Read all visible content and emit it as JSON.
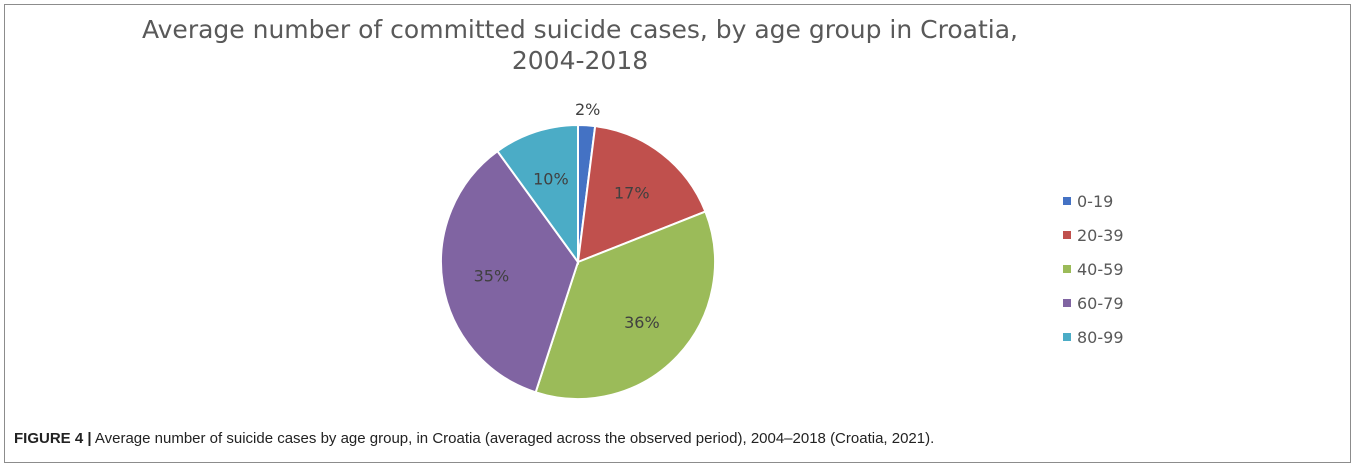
{
  "chart_data": {
    "type": "pie",
    "title_lines": [
      "Average number of committed suicide cases, by age group in Croatia,",
      "2004-2018"
    ],
    "categories": [
      "0-19",
      "20-39",
      "40-59",
      "60-79",
      "80-99"
    ],
    "values": [
      2,
      17,
      36,
      35,
      10
    ],
    "labels": [
      "2%",
      "17%",
      "36%",
      "35%",
      "10%"
    ],
    "colors": [
      "#4472c4",
      "#c0504d",
      "#9bbb59",
      "#8064a2",
      "#4bacc6"
    ],
    "legend_position": "right"
  },
  "caption": {
    "label": "FIGURE 4 |",
    "text": " Average number of suicide cases by age group, in Croatia (averaged across the observed period), 2004–2018 (Croatia, 2021)."
  }
}
